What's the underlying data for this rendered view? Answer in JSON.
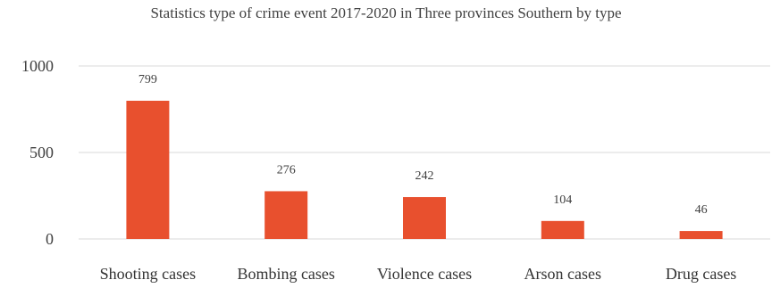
{
  "chart_data": {
    "type": "bar",
    "title": "Statistics type of crime event 2017-2020 in Three provinces Southern by type",
    "categories": [
      "Shooting cases",
      "Bombing cases",
      "Violence cases",
      "Arson cases",
      "Drug cases"
    ],
    "values": [
      799,
      276,
      242,
      104,
      46
    ],
    "data_labels": [
      "799",
      "276",
      "242",
      "104",
      "46"
    ],
    "yticks": [
      "0",
      "500",
      "1000"
    ],
    "ylim": [
      0,
      1000
    ],
    "xlabel": "",
    "ylabel": "",
    "grid": true,
    "legend": "none",
    "bar_color": "#E8502E",
    "grid_color": "#D9D9D9"
  }
}
